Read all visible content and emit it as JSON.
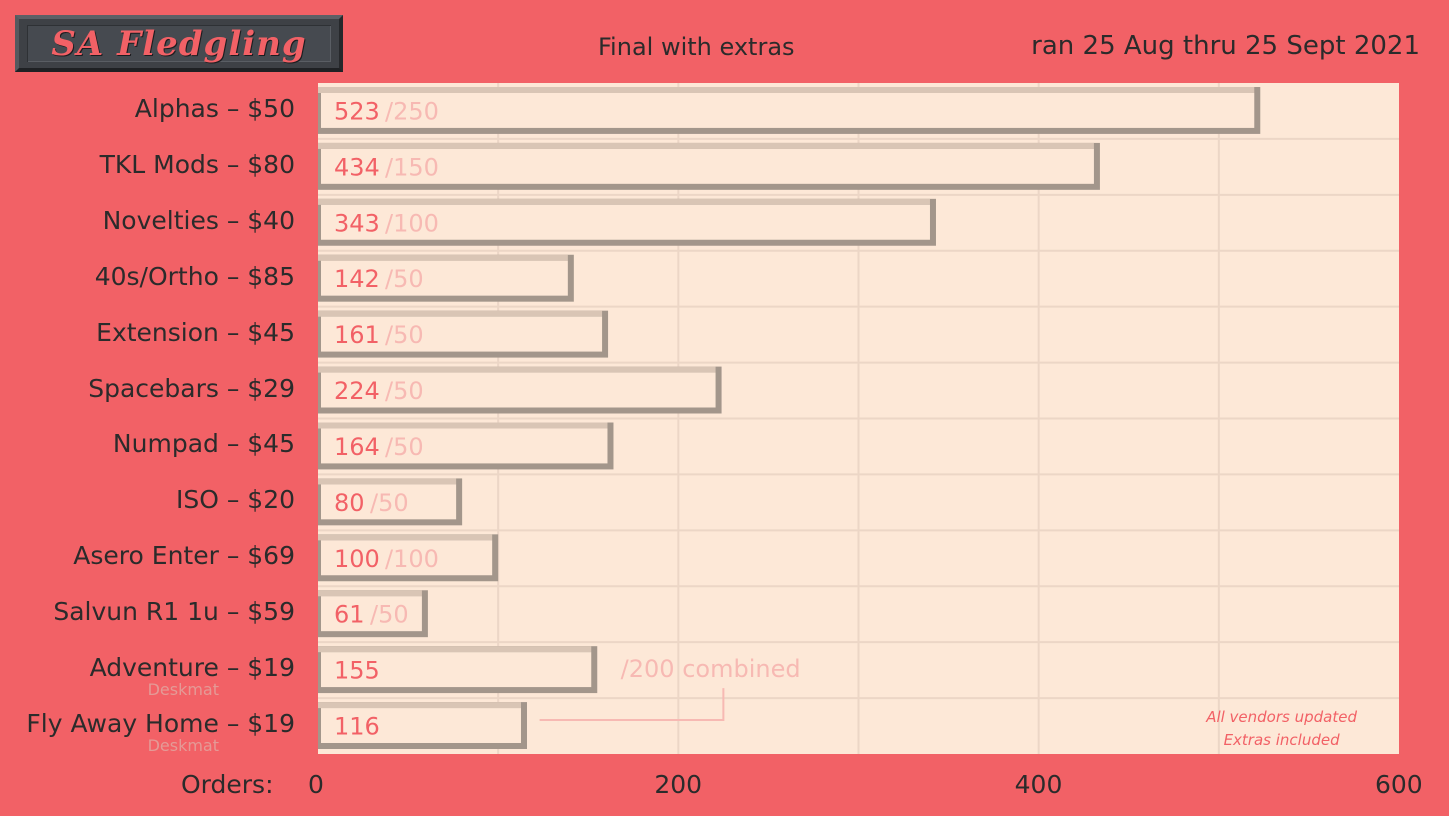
{
  "header": {
    "logo_text": "SA Fledgling",
    "subtitle": "Final with extras",
    "date_range": "ran 25 Aug thru 25 Sept 2021"
  },
  "colors": {
    "background": "#f26166",
    "plot_background": "#fde8d7",
    "bar_face": "#fde8d7",
    "bar_shadow": "#a3968b",
    "value_text": "#f26166",
    "moq_text": "#f7b9b3",
    "label_text": "#2b2b2b"
  },
  "chart_data": {
    "type": "bar",
    "orientation": "horizontal",
    "xlabel": "Orders:",
    "xlim": [
      0,
      600
    ],
    "xticks": [
      0,
      200,
      400,
      600
    ],
    "grid": true,
    "categories": [
      "Alphas – $50",
      "TKL Mods – $80",
      "Novelties – $40",
      "40s/Ortho – $85",
      "Extension – $45",
      "Spacebars – $29",
      "Numpad – $45",
      "ISO – $20",
      "Asero Enter – $69",
      "Salvun R1 1u – $59",
      "Adventure – $19",
      "Fly Away Home – $19"
    ],
    "sublabels": [
      "",
      "",
      "",
      "",
      "",
      "",
      "",
      "",
      "",
      "",
      "Deskmat",
      "Deskmat"
    ],
    "values": [
      523,
      434,
      343,
      142,
      161,
      224,
      164,
      80,
      100,
      61,
      155,
      116
    ],
    "moq_labels": [
      "/250",
      "/150",
      "/100",
      "/50",
      "/50",
      "/50",
      "/50",
      "/50",
      "/100",
      "/50",
      "",
      ""
    ],
    "combined_label": "/200 combined",
    "notes": [
      "All vendors updated",
      "Extras included"
    ]
  }
}
